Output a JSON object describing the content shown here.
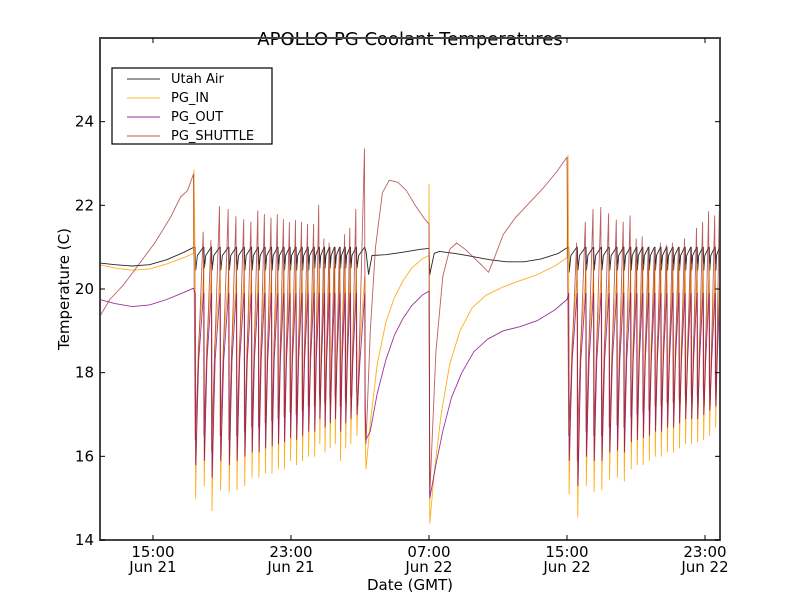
{
  "chart_data": {
    "type": "line",
    "title": "APOLLO PG Coolant Temperatures",
    "xlabel": "Date (GMT)",
    "ylabel": "Temperature (C)",
    "x_unit": "hours since 00:00 Jun 21 (GMT)",
    "xlim": [
      11.93,
      47.87
    ],
    "ylim": [
      14,
      26
    ],
    "grid": false,
    "legend_position": "top-left",
    "yticks": [
      14,
      16,
      18,
      20,
      22,
      24
    ],
    "ytick_labels": [
      "14",
      "16",
      "18",
      "20",
      "22",
      "24"
    ],
    "xticks": [
      15,
      23,
      31,
      39,
      47
    ],
    "xtick_labels": [
      {
        "time": "15:00",
        "date": "Jun 21"
      },
      {
        "time": "23:00",
        "date": "Jun 21"
      },
      {
        "time": "07:00",
        "date": "Jun 22"
      },
      {
        "time": "15:00",
        "date": "Jun 22"
      },
      {
        "time": "23:00",
        "date": "Jun 22"
      }
    ],
    "legend": [
      {
        "name": "Utah Air",
        "color": "#000000"
      },
      {
        "name": "PG_IN",
        "color": "#ffa500"
      },
      {
        "name": "PG_OUT",
        "color": "#800080"
      },
      {
        "name": "PG_SHUTTLE",
        "color": "#a52a2a"
      }
    ],
    "smooth_segments": {
      "Utah Air": [
        [
          [
            11.93,
            20.62
          ],
          [
            12.8,
            20.58
          ],
          [
            13.8,
            20.55
          ],
          [
            14.8,
            20.58
          ],
          [
            15.8,
            20.7
          ],
          [
            16.8,
            20.88
          ],
          [
            17.38,
            21.0
          ]
        ],
        [
          [
            27.35,
            20.9
          ],
          [
            27.5,
            20.35
          ],
          [
            27.7,
            20.8
          ],
          [
            28.5,
            20.82
          ],
          [
            29.5,
            20.88
          ],
          [
            30.5,
            20.95
          ],
          [
            31.0,
            20.97
          ]
        ],
        [
          [
            31.05,
            20.35
          ],
          [
            31.3,
            20.85
          ],
          [
            31.6,
            20.9
          ],
          [
            32.5,
            20.85
          ],
          [
            33.5,
            20.78
          ],
          [
            34.5,
            20.7
          ],
          [
            35.5,
            20.65
          ],
          [
            36.5,
            20.65
          ],
          [
            37.5,
            20.72
          ],
          [
            38.5,
            20.85
          ],
          [
            39.05,
            21.0
          ]
        ]
      ],
      "PG_IN": [
        [
          [
            11.93,
            20.58
          ],
          [
            12.8,
            20.5
          ],
          [
            13.8,
            20.45
          ],
          [
            14.8,
            20.48
          ],
          [
            15.8,
            20.6
          ],
          [
            16.8,
            20.75
          ],
          [
            17.35,
            20.85
          ],
          [
            17.38,
            22.85
          ]
        ],
        [
          [
            27.3,
            16.5
          ],
          [
            27.35,
            15.7
          ],
          [
            27.6,
            16.8
          ],
          [
            28.0,
            18.2
          ],
          [
            28.5,
            19.2
          ],
          [
            29.0,
            19.8
          ],
          [
            29.5,
            20.2
          ],
          [
            30.0,
            20.5
          ],
          [
            30.6,
            20.72
          ],
          [
            31.0,
            20.8
          ],
          [
            31.0,
            22.5
          ]
        ],
        [
          [
            31.0,
            22.5
          ],
          [
            31.05,
            14.4
          ],
          [
            31.3,
            15.6
          ],
          [
            31.7,
            17.0
          ],
          [
            32.2,
            18.2
          ],
          [
            32.8,
            19.0
          ],
          [
            33.5,
            19.55
          ],
          [
            34.3,
            19.85
          ],
          [
            35.3,
            20.05
          ],
          [
            36.3,
            20.2
          ],
          [
            37.3,
            20.35
          ],
          [
            38.3,
            20.55
          ],
          [
            39.0,
            20.75
          ],
          [
            39.06,
            23.2
          ]
        ]
      ],
      "PG_OUT": [
        [
          [
            11.93,
            19.75
          ],
          [
            12.8,
            19.65
          ],
          [
            13.8,
            19.58
          ],
          [
            14.8,
            19.62
          ],
          [
            15.8,
            19.75
          ],
          [
            16.8,
            19.92
          ],
          [
            17.35,
            20.02
          ]
        ],
        [
          [
            27.3,
            17.0
          ],
          [
            27.35,
            16.4
          ],
          [
            27.6,
            16.6
          ],
          [
            28.0,
            17.5
          ],
          [
            28.5,
            18.3
          ],
          [
            29.0,
            18.9
          ],
          [
            29.5,
            19.3
          ],
          [
            30.0,
            19.6
          ],
          [
            30.6,
            19.85
          ],
          [
            31.0,
            19.95
          ]
        ],
        [
          [
            31.05,
            15.0
          ],
          [
            31.4,
            15.8
          ],
          [
            31.8,
            16.6
          ],
          [
            32.3,
            17.4
          ],
          [
            32.9,
            18.0
          ],
          [
            33.6,
            18.5
          ],
          [
            34.4,
            18.8
          ],
          [
            35.3,
            19.0
          ],
          [
            36.3,
            19.1
          ],
          [
            37.3,
            19.25
          ],
          [
            38.3,
            19.5
          ],
          [
            39.0,
            19.75
          ]
        ]
      ],
      "PG_SHUTTLE": [
        [
          [
            11.93,
            19.35
          ],
          [
            12.5,
            19.75
          ],
          [
            13.3,
            20.1
          ],
          [
            14.2,
            20.6
          ],
          [
            15.1,
            21.1
          ],
          [
            16.0,
            21.7
          ],
          [
            16.6,
            22.2
          ],
          [
            17.0,
            22.35
          ],
          [
            17.35,
            22.75
          ]
        ],
        [
          [
            27.3,
            17.5
          ],
          [
            27.35,
            16.3
          ],
          [
            27.6,
            19.0
          ],
          [
            27.9,
            21.0
          ],
          [
            28.3,
            22.3
          ],
          [
            28.7,
            22.6
          ],
          [
            29.2,
            22.55
          ],
          [
            29.7,
            22.35
          ],
          [
            30.2,
            22.0
          ],
          [
            30.7,
            21.7
          ],
          [
            31.0,
            21.55
          ]
        ],
        [
          [
            31.05,
            15.1
          ],
          [
            31.4,
            18.5
          ],
          [
            31.8,
            20.3
          ],
          [
            32.2,
            20.95
          ],
          [
            32.6,
            21.1
          ],
          [
            33.1,
            20.95
          ],
          [
            33.6,
            20.75
          ],
          [
            34.1,
            20.55
          ],
          [
            34.45,
            20.4
          ],
          [
            34.8,
            20.75
          ],
          [
            35.3,
            21.3
          ],
          [
            36.0,
            21.7
          ],
          [
            36.8,
            22.05
          ],
          [
            37.6,
            22.4
          ],
          [
            38.4,
            22.8
          ],
          [
            39.0,
            23.15
          ]
        ]
      ]
    },
    "cycling_segments": [
      {
        "start": 17.38,
        "end": 27.3,
        "cycles": [
          {
            "t": 17.45,
            "shuttle_peak": 21.36,
            "in_trough": 15.0,
            "out_trough": 15.8,
            "air_low": 20.45
          },
          {
            "t": 17.95,
            "shuttle_peak": 21.16,
            "in_trough": 15.3,
            "out_trough": 15.9,
            "air_low": 20.5
          },
          {
            "t": 18.4,
            "shuttle_peak": 21.97,
            "in_trough": 14.7,
            "out_trough": 15.5,
            "air_low": 20.45
          },
          {
            "t": 18.9,
            "shuttle_peak": 21.9,
            "in_trough": 15.2,
            "out_trough": 15.9,
            "air_low": 20.45
          },
          {
            "t": 19.4,
            "shuttle_peak": 21.73,
            "in_trough": 15.15,
            "out_trough": 15.8,
            "air_low": 20.45
          },
          {
            "t": 19.85,
            "shuttle_peak": 21.66,
            "in_trough": 15.2,
            "out_trough": 15.9,
            "air_low": 20.45
          },
          {
            "t": 20.3,
            "shuttle_peak": 21.6,
            "in_trough": 15.3,
            "out_trough": 16.0,
            "air_low": 20.45
          },
          {
            "t": 20.72,
            "shuttle_peak": 21.87,
            "in_trough": 15.5,
            "out_trough": 16.1,
            "air_low": 20.45
          },
          {
            "t": 21.12,
            "shuttle_peak": 21.78,
            "in_trough": 15.5,
            "out_trough": 16.1,
            "air_low": 20.45
          },
          {
            "t": 21.5,
            "shuttle_peak": 21.7,
            "in_trough": 15.6,
            "out_trough": 16.2,
            "air_low": 20.45
          },
          {
            "t": 21.88,
            "shuttle_peak": 21.78,
            "in_trough": 15.6,
            "out_trough": 16.25,
            "air_low": 20.45
          },
          {
            "t": 22.25,
            "shuttle_peak": 21.66,
            "in_trough": 15.7,
            "out_trough": 16.3,
            "air_low": 20.45
          },
          {
            "t": 22.6,
            "shuttle_peak": 21.59,
            "in_trough": 15.7,
            "out_trough": 16.35,
            "air_low": 20.45
          },
          {
            "t": 22.95,
            "shuttle_peak": 21.64,
            "in_trough": 15.9,
            "out_trough": 16.45,
            "air_low": 20.45
          },
          {
            "t": 23.3,
            "shuttle_peak": 21.6,
            "in_trough": 15.8,
            "out_trough": 16.4,
            "air_low": 20.45
          },
          {
            "t": 23.65,
            "shuttle_peak": 21.55,
            "in_trough": 15.9,
            "out_trough": 16.5,
            "air_low": 20.45
          },
          {
            "t": 24.0,
            "shuttle_peak": 21.55,
            "in_trough": 16.0,
            "out_trough": 16.6,
            "air_low": 20.45
          },
          {
            "t": 24.35,
            "shuttle_peak": 22.0,
            "in_trough": 16.0,
            "out_trough": 16.6,
            "air_low": 20.5
          },
          {
            "t": 24.65,
            "shuttle_peak": 21.2,
            "in_trough": 16.3,
            "out_trough": 16.9,
            "air_low": 20.5
          },
          {
            "t": 24.95,
            "shuttle_peak": 21.1,
            "in_trough": 16.1,
            "out_trough": 16.7,
            "air_low": 20.5
          },
          {
            "t": 25.25,
            "shuttle_peak": 21.0,
            "in_trough": 16.2,
            "out_trough": 16.8,
            "air_low": 20.5
          },
          {
            "t": 25.55,
            "shuttle_peak": 21.0,
            "in_trough": 16.3,
            "out_trough": 16.9,
            "air_low": 20.5
          },
          {
            "t": 25.85,
            "shuttle_peak": 21.3,
            "in_trough": 15.9,
            "out_trough": 16.6,
            "air_low": 20.5
          },
          {
            "t": 26.15,
            "shuttle_peak": 21.45,
            "in_trough": 16.2,
            "out_trough": 16.8,
            "air_low": 20.5
          },
          {
            "t": 26.45,
            "shuttle_peak": 21.9,
            "in_trough": 16.3,
            "out_trough": 16.9,
            "air_low": 20.5
          },
          {
            "t": 26.8,
            "shuttle_peak": 23.35,
            "in_trough": 16.5,
            "out_trough": 17.0,
            "air_low": 20.5
          }
        ]
      },
      {
        "start": 39.06,
        "end": 47.87,
        "cycles": [
          {
            "t": 39.1,
            "shuttle_peak": 21.1,
            "in_trough": 15.1,
            "out_trough": 15.9,
            "air_low": 20.4
          },
          {
            "t": 39.6,
            "shuttle_peak": 21.6,
            "in_trough": 14.55,
            "out_trough": 15.3,
            "air_low": 20.45
          },
          {
            "t": 40.1,
            "shuttle_peak": 21.9,
            "in_trough": 15.3,
            "out_trough": 16.0,
            "air_low": 20.45
          },
          {
            "t": 40.55,
            "shuttle_peak": 21.95,
            "in_trough": 15.15,
            "out_trough": 15.9,
            "air_low": 20.45
          },
          {
            "t": 41.0,
            "shuttle_peak": 21.8,
            "in_trough": 15.2,
            "out_trough": 15.9,
            "air_low": 20.45
          },
          {
            "t": 41.45,
            "shuttle_peak": 21.65,
            "in_trough": 15.45,
            "out_trough": 16.1,
            "air_low": 20.45
          },
          {
            "t": 41.9,
            "shuttle_peak": 21.6,
            "in_trough": 15.5,
            "out_trough": 16.15,
            "air_low": 20.45
          },
          {
            "t": 42.3,
            "shuttle_peak": 21.75,
            "in_trough": 15.4,
            "out_trough": 16.1,
            "air_low": 20.45
          },
          {
            "t": 42.7,
            "shuttle_peak": 21.2,
            "in_trough": 15.7,
            "out_trough": 16.35,
            "air_low": 20.45
          },
          {
            "t": 43.05,
            "shuttle_peak": 21.25,
            "in_trough": 15.8,
            "out_trough": 16.4,
            "air_low": 20.45
          },
          {
            "t": 43.4,
            "shuttle_peak": 21.0,
            "in_trough": 15.8,
            "out_trough": 16.45,
            "air_low": 20.45
          },
          {
            "t": 43.75,
            "shuttle_peak": 20.95,
            "in_trough": 15.9,
            "out_trough": 16.5,
            "air_low": 20.45
          },
          {
            "t": 44.1,
            "shuttle_peak": 21.1,
            "in_trough": 16.0,
            "out_trough": 16.6,
            "air_low": 20.45
          },
          {
            "t": 44.45,
            "shuttle_peak": 21.05,
            "in_trough": 16.0,
            "out_trough": 16.6,
            "air_low": 20.45
          },
          {
            "t": 44.8,
            "shuttle_peak": 21.1,
            "in_trough": 16.1,
            "out_trough": 16.7,
            "air_low": 20.45
          },
          {
            "t": 45.15,
            "shuttle_peak": 21.0,
            "in_trough": 16.1,
            "out_trough": 16.7,
            "air_low": 20.45
          },
          {
            "t": 45.5,
            "shuttle_peak": 21.2,
            "in_trough": 16.2,
            "out_trough": 16.8,
            "air_low": 20.45
          },
          {
            "t": 45.85,
            "shuttle_peak": 20.95,
            "in_trough": 16.3,
            "out_trough": 16.9,
            "air_low": 20.45
          },
          {
            "t": 46.2,
            "shuttle_peak": 21.45,
            "in_trough": 16.3,
            "out_trough": 16.9,
            "air_low": 20.45
          },
          {
            "t": 46.55,
            "shuttle_peak": 21.6,
            "in_trough": 16.35,
            "out_trough": 16.9,
            "air_low": 20.45
          },
          {
            "t": 46.9,
            "shuttle_peak": 21.85,
            "in_trough": 16.4,
            "out_trough": 17.0,
            "air_low": 20.45
          },
          {
            "t": 47.25,
            "shuttle_peak": 21.75,
            "in_trough": 16.5,
            "out_trough": 17.1,
            "air_low": 20.45
          },
          {
            "t": 47.6,
            "shuttle_peak": 21.85,
            "in_trough": 16.7,
            "out_trough": 17.2,
            "air_low": 20.45
          }
        ]
      }
    ]
  }
}
